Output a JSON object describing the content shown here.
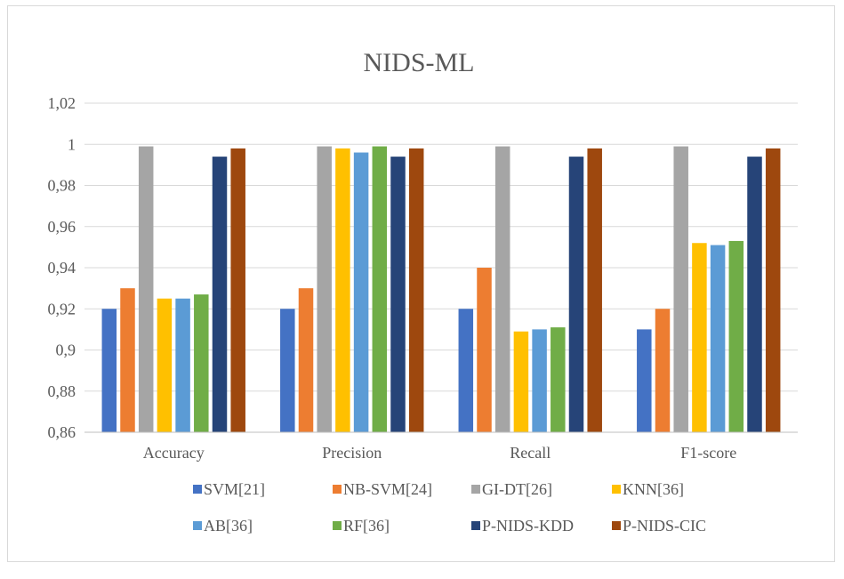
{
  "chart_data": {
    "type": "bar",
    "title": "NIDS-ML",
    "xlabel": "",
    "ylabel": "",
    "ylim": [
      0.86,
      1.02
    ],
    "ytick_step": 0.02,
    "ytick_labels": [
      "0,86",
      "0,88",
      "0,9",
      "0,92",
      "0,94",
      "0,96",
      "0,98",
      "1",
      "1,02"
    ],
    "grid": true,
    "legend_position": "bottom",
    "categories": [
      "Accuracy",
      "Precision",
      "Recall",
      "F1-score"
    ],
    "series": [
      {
        "name": "SVM[21]",
        "color": "#4472C4",
        "values": [
          0.92,
          0.92,
          0.92,
          0.91
        ]
      },
      {
        "name": "NB-SVM[24]",
        "color": "#ED7D31",
        "values": [
          0.93,
          0.93,
          0.94,
          0.92
        ]
      },
      {
        "name": "GI-DT[26]",
        "color": "#A5A5A5",
        "values": [
          0.999,
          0.999,
          0.999,
          0.999
        ]
      },
      {
        "name": "KNN[36]",
        "color": "#FFC000",
        "values": [
          0.925,
          0.998,
          0.909,
          0.952
        ]
      },
      {
        "name": "AB[36]",
        "color": "#5B9BD5",
        "values": [
          0.925,
          0.996,
          0.91,
          0.951
        ]
      },
      {
        "name": "RF[36]",
        "color": "#70AD47",
        "values": [
          0.927,
          0.999,
          0.911,
          0.953
        ]
      },
      {
        "name": "P-NIDS-KDD",
        "color": "#264478",
        "values": [
          0.994,
          0.994,
          0.994,
          0.994
        ]
      },
      {
        "name": "P-NIDS-CIC",
        "color": "#9E480E",
        "values": [
          0.998,
          0.998,
          0.998,
          0.998
        ]
      }
    ]
  }
}
